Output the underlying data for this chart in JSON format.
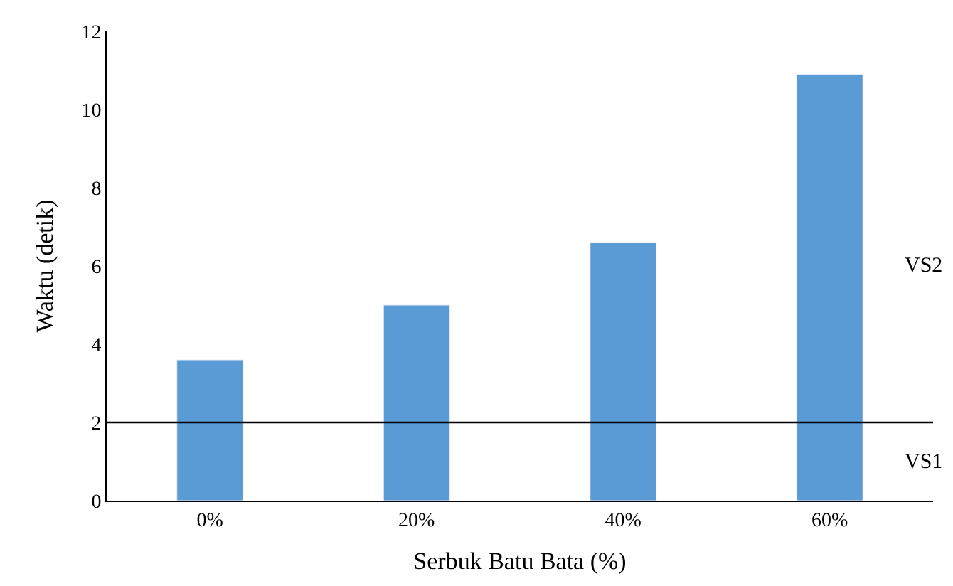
{
  "chart_data": {
    "type": "bar",
    "xlabel": "Serbuk Batu Bata (%)",
    "ylabel": "Waktu (detik)",
    "categories": [
      "0%",
      "20%",
      "40%",
      "60%"
    ],
    "values": [
      3.6,
      5.0,
      6.6,
      10.9
    ],
    "color": "#5b9bd5",
    "ylim": [
      0,
      12
    ],
    "yticks": [
      0,
      2,
      4,
      6,
      8,
      10,
      12
    ],
    "legend": false,
    "ref_lines": [
      {
        "axis": "y",
        "value": 2,
        "color": "#000000"
      }
    ],
    "annotations": [
      "VS2",
      "VS1"
    ]
  }
}
